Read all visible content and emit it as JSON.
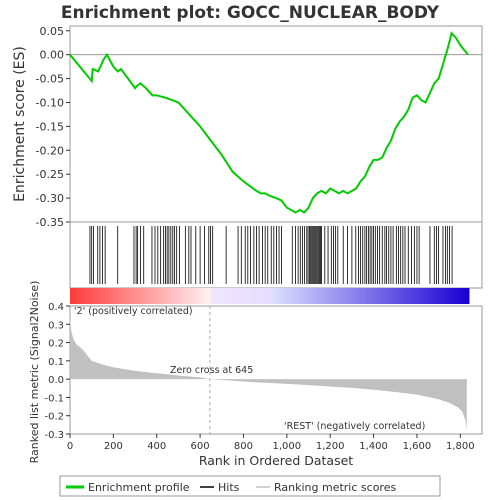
{
  "chart_data": [
    {
      "type": "line",
      "title": "Enrichment plot: GOCC_NUCLEAR_BODY",
      "ylabel": "Enrichment score (ES)",
      "ylim": [
        -0.35,
        0.06
      ],
      "yticks": [
        "0.05",
        "0.00",
        "-0.05",
        "-0.10",
        "-0.15",
        "-0.20",
        "-0.25",
        "-0.30",
        "-0.35"
      ],
      "ytick_values": [
        0.05,
        0.0,
        -0.05,
        -0.1,
        -0.15,
        -0.2,
        -0.25,
        -0.3,
        -0.35
      ],
      "series": [
        {
          "name": "Enrichment profile",
          "color": "#00cc00",
          "x": [
            0,
            100,
            105,
            130,
            155,
            170,
            200,
            220,
            235,
            300,
            310,
            325,
            350,
            380,
            400,
            440,
            470,
            500,
            550,
            600,
            650,
            700,
            750,
            800,
            830,
            860,
            880,
            900,
            920,
            950,
            975,
            1000,
            1020,
            1040,
            1060,
            1080,
            1100,
            1120,
            1140,
            1160,
            1180,
            1200,
            1220,
            1240,
            1260,
            1280,
            1300,
            1320,
            1340,
            1360,
            1380,
            1400,
            1420,
            1440,
            1460,
            1480,
            1500,
            1520,
            1540,
            1560,
            1580,
            1600,
            1620,
            1640,
            1660,
            1680,
            1700,
            1720,
            1740,
            1760,
            1780,
            1800,
            1835
          ],
          "y": [
            0.0,
            -0.055,
            -0.03,
            -0.035,
            -0.01,
            0.0,
            -0.025,
            -0.035,
            -0.03,
            -0.07,
            -0.065,
            -0.06,
            -0.07,
            -0.085,
            -0.085,
            -0.09,
            -0.095,
            -0.1,
            -0.125,
            -0.15,
            -0.18,
            -0.21,
            -0.245,
            -0.265,
            -0.275,
            -0.285,
            -0.29,
            -0.29,
            -0.295,
            -0.3,
            -0.305,
            -0.32,
            -0.325,
            -0.33,
            -0.325,
            -0.33,
            -0.32,
            -0.3,
            -0.29,
            -0.285,
            -0.29,
            -0.28,
            -0.285,
            -0.29,
            -0.285,
            -0.29,
            -0.285,
            -0.28,
            -0.265,
            -0.255,
            -0.235,
            -0.22,
            -0.22,
            -0.215,
            -0.195,
            -0.18,
            -0.155,
            -0.14,
            -0.13,
            -0.115,
            -0.09,
            -0.085,
            -0.095,
            -0.1,
            -0.08,
            -0.06,
            -0.05,
            -0.02,
            0.01,
            0.045,
            0.035,
            0.02,
            0.0
          ]
        }
      ]
    },
    {
      "type": "heatmap",
      "name_hint": "Hits",
      "hits": [
        92,
        100,
        108,
        128,
        138,
        150,
        162,
        220,
        295,
        305,
        312,
        325,
        340,
        378,
        392,
        405,
        418,
        432,
        440,
        448,
        456,
        465,
        474,
        482,
        492,
        505,
        532,
        548,
        558,
        580,
        600,
        620,
        640,
        648,
        658,
        720,
        775,
        790,
        808,
        820,
        832,
        848,
        860,
        872,
        888,
        900,
        912,
        928,
        940,
        952,
        964,
        975,
        1025,
        1040,
        1052,
        1062,
        1072,
        1082,
        1092,
        1098,
        1104,
        1110,
        1115,
        1120,
        1125,
        1130,
        1135,
        1140,
        1145,
        1150,
        1155,
        1160,
        1175,
        1190,
        1205,
        1215,
        1225,
        1235,
        1260,
        1280,
        1300,
        1318,
        1330,
        1340,
        1350,
        1360,
        1368,
        1376,
        1384,
        1392,
        1400,
        1408,
        1418,
        1428,
        1440,
        1452,
        1460,
        1470,
        1480,
        1490,
        1505,
        1515,
        1525,
        1535,
        1545,
        1560,
        1575,
        1588,
        1600,
        1610,
        1660,
        1680,
        1690,
        1700,
        1720,
        1732,
        1740,
        1750,
        1762
      ]
    },
    {
      "type": "area",
      "xlabel": "Rank in Ordered Dataset",
      "ylabel": "Ranked list metric (Signal2Noise)",
      "ylim": [
        -0.3,
        0.4
      ],
      "xlim": [
        0,
        1900
      ],
      "xticks": [
        "0",
        "200",
        "400",
        "600",
        "800",
        "1,000",
        "1,200",
        "1,400",
        "1,600",
        "1,800"
      ],
      "xtick_values": [
        0,
        200,
        400,
        600,
        800,
        1000,
        1200,
        1400,
        1600,
        1800
      ],
      "yticks": [
        "0.4",
        "0.3",
        "0.2",
        "0.1",
        "0.0",
        "-0.1",
        "-0.2",
        "-0.3"
      ],
      "ytick_values": [
        0.4,
        0.3,
        0.2,
        0.1,
        0.0,
        -0.1,
        -0.2,
        -0.3
      ],
      "series": [
        {
          "name": "Ranking metric scores",
          "color": "#c0c0c0",
          "x": [
            0,
            5,
            15,
            30,
            60,
            100,
            150,
            200,
            300,
            400,
            500,
            600,
            645,
            700,
            800,
            900,
            1000,
            1100,
            1200,
            1300,
            1400,
            1500,
            1600,
            1700,
            1750,
            1790,
            1810,
            1825,
            1830
          ],
          "y": [
            0.34,
            0.27,
            0.22,
            0.19,
            0.16,
            0.1,
            0.08,
            0.065,
            0.045,
            0.032,
            0.02,
            0.01,
            0.0,
            -0.005,
            -0.013,
            -0.02,
            -0.026,
            -0.033,
            -0.04,
            -0.048,
            -0.058,
            -0.07,
            -0.085,
            -0.11,
            -0.13,
            -0.155,
            -0.18,
            -0.23,
            -0.28
          ]
        }
      ],
      "annotations": {
        "positive_label": "'2' (positively correlated)",
        "negative_label": "'REST' (negatively correlated)",
        "zero_cross": "Zero cross at 645",
        "zero_cross_value": 645
      }
    }
  ],
  "legend": {
    "items": [
      {
        "label": "Enrichment profile",
        "color": "#00cc00",
        "style": "thick-line"
      },
      {
        "label": "Hits",
        "color": "#000000",
        "style": "line"
      },
      {
        "label": "Ranking metric scores",
        "color": "#c0c0c0",
        "style": "line"
      }
    ]
  }
}
